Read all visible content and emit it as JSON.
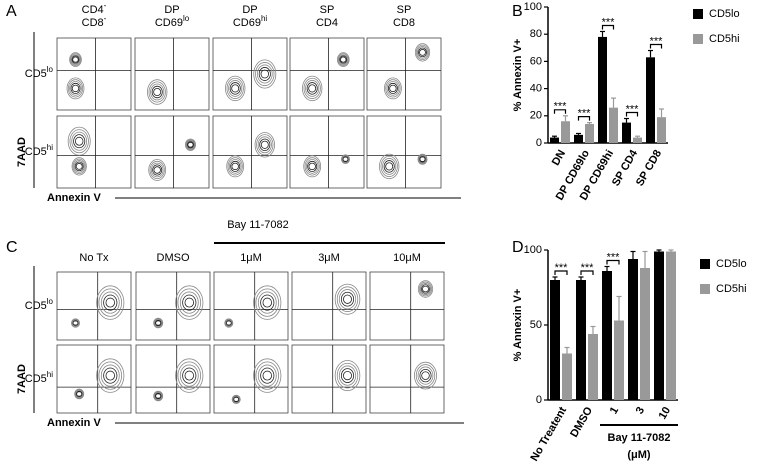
{
  "figure": {
    "panel_labels": [
      "A",
      "B",
      "C",
      "D"
    ],
    "A": {
      "columns": [
        {
          "lines": [
            {
              "text": "CD4",
              "sup": "-"
            },
            {
              "text": "CD8",
              "sup": "-"
            }
          ]
        },
        {
          "lines": [
            {
              "text": "DP"
            },
            {
              "text": "CD69",
              "sup": "lo"
            }
          ]
        },
        {
          "lines": [
            {
              "text": "DP"
            },
            {
              "text": "CD69",
              "sup": "hi"
            }
          ]
        },
        {
          "lines": [
            {
              "text": "SP"
            },
            {
              "text": "CD4"
            }
          ]
        },
        {
          "lines": [
            {
              "text": "SP"
            },
            {
              "text": "CD8"
            }
          ]
        }
      ],
      "rows": [
        {
          "text": "CD5",
          "sup": "lo"
        },
        {
          "text": "CD5",
          "sup": "hi"
        }
      ],
      "y_axis": "7AAD",
      "x_axis": "Annexin V"
    },
    "C": {
      "treatment": "Bay 11-7082",
      "columns": [
        {
          "lines": [
            {
              "text": "No Tx"
            }
          ]
        },
        {
          "lines": [
            {
              "text": "DMSO"
            }
          ]
        },
        {
          "lines": [
            {
              "text": "1μM"
            }
          ]
        },
        {
          "lines": [
            {
              "text": "3μM"
            }
          ]
        },
        {
          "lines": [
            {
              "text": "10μM"
            }
          ]
        }
      ],
      "rows": [
        {
          "text": "CD5",
          "sup": "lo"
        },
        {
          "text": "CD5",
          "sup": "hi"
        }
      ],
      "y_axis": "7AAD",
      "x_axis": "Annexin V"
    }
  },
  "chart_data": [
    {
      "type": "bar",
      "y_label": "% Annexin V+",
      "categories": [
        "DN",
        "DP CD69lo",
        "DP CD69hi",
        "SP CD4",
        "SP CD8"
      ],
      "series": [
        {
          "name": "CD5lo",
          "color": "#000000",
          "values": [
            4,
            6,
            78,
            15,
            63
          ],
          "errors": [
            1,
            1,
            4,
            3,
            5
          ]
        },
        {
          "name": "CD5hi",
          "color": "#999999",
          "values": [
            16,
            14,
            26,
            4,
            19
          ],
          "errors": [
            4,
            1,
            7,
            1,
            6
          ]
        }
      ],
      "significance": [
        "***",
        "***",
        "***",
        "***",
        "***"
      ],
      "ylim": [
        0,
        100
      ],
      "yticks": [
        0,
        20,
        40,
        60,
        80,
        100
      ]
    },
    {
      "type": "bar",
      "y_label": "% Annexin V+",
      "categories": [
        "No Treatent",
        "DMSO",
        "1",
        "3",
        "10"
      ],
      "group_label": "Bay 11-7082",
      "group_unit": "(μM)",
      "series": [
        {
          "name": "CD5lo",
          "color": "#000000",
          "values": [
            80,
            80,
            86,
            94,
            99
          ],
          "errors": [
            2,
            2,
            3,
            5,
            1
          ]
        },
        {
          "name": "CD5hi",
          "color": "#999999",
          "values": [
            31,
            44,
            53,
            88,
            99
          ],
          "errors": [
            4,
            5,
            16,
            11,
            1
          ]
        }
      ],
      "significance": [
        "***",
        "***",
        "***",
        null,
        null
      ],
      "ylim": [
        0,
        100
      ],
      "yticks": [
        0,
        50,
        100
      ]
    }
  ]
}
